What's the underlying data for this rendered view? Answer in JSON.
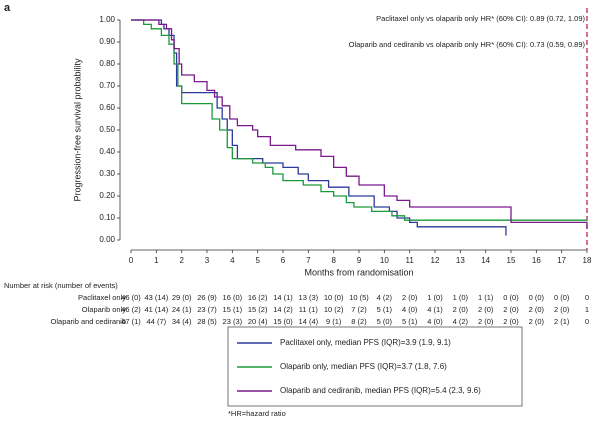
{
  "panel_label": "a",
  "chart_data": {
    "type": "line",
    "step": true,
    "y_label": "Progression-free survival probability",
    "x_label": "Months from randomisation",
    "annotations": [
      "Paclitaxel only vs olaparib only HR* (60% CI): 0.89 (0.72, 1.09)",
      "Olaparib and cediranib vs olaparib only HR* (60% CI): 0.73 (0.59, 0.89)"
    ],
    "xlim": [
      0,
      18
    ],
    "xticks": [
      0,
      1,
      2,
      3,
      4,
      5,
      6,
      7,
      8,
      9,
      10,
      11,
      12,
      13,
      14,
      15,
      16,
      17,
      18
    ],
    "ylim": [
      0,
      1
    ],
    "yticks": [
      {
        "value": 0,
        "label": "0.00"
      },
      {
        "value": 0.1,
        "label": "0.10"
      },
      {
        "value": 0.2,
        "label": "0.20"
      },
      {
        "value": 0.3,
        "label": "0.30"
      },
      {
        "value": 0.4,
        "label": "0.40"
      },
      {
        "value": 0.5,
        "label": "0.50"
      },
      {
        "value": 0.6,
        "label": "0.60"
      },
      {
        "value": 0.7,
        "label": "0.70"
      },
      {
        "value": 0.8,
        "label": "0.80"
      },
      {
        "value": 0.9,
        "label": "0.90"
      },
      {
        "value": 1,
        "label": "1.00"
      }
    ],
    "cutoff_color": "#c0283c",
    "series": [
      {
        "name": "Paclitaxel only, median PFS (IQR)=3.9 (1.9, 9.1)",
        "color": "#2b3a9a",
        "x": [
          0,
          1.2,
          1.3,
          1.5,
          1.7,
          1.8,
          2.0,
          3.4,
          3.6,
          3.8,
          4.0,
          4.2,
          5.2,
          6.0,
          6.6,
          7.0,
          7.8,
          8.6,
          9.6,
          10.2,
          10.5,
          11.0,
          11.3,
          14.8
        ],
        "values": [
          1.0,
          0.98,
          0.96,
          0.93,
          0.85,
          0.7,
          0.67,
          0.6,
          0.55,
          0.5,
          0.43,
          0.37,
          0.35,
          0.33,
          0.3,
          0.27,
          0.24,
          0.2,
          0.15,
          0.13,
          0.1,
          0.08,
          0.06,
          0.02
        ]
      },
      {
        "name": "Olaparib only, median PFS (IQR)=3.7 (1.8, 7.6)",
        "color": "#1a9a3a",
        "x": [
          0,
          0.5,
          0.8,
          1.2,
          1.5,
          1.7,
          1.85,
          2.0,
          3.2,
          3.5,
          3.8,
          4.0,
          4.8,
          5.3,
          5.6,
          6.0,
          6.8,
          7.5,
          8.0,
          8.5,
          8.8,
          9.5,
          10.3,
          10.8,
          18
        ],
        "values": [
          1.0,
          0.98,
          0.96,
          0.93,
          0.89,
          0.8,
          0.7,
          0.62,
          0.55,
          0.5,
          0.42,
          0.37,
          0.35,
          0.33,
          0.3,
          0.27,
          0.25,
          0.22,
          0.2,
          0.17,
          0.15,
          0.13,
          0.11,
          0.09,
          0.09
        ]
      },
      {
        "name": "Olaparib and cediranib, median PFS (IQR)=5.4 (2.3, 9.6)",
        "color": "#7a1a8a",
        "x": [
          0,
          1.1,
          1.4,
          1.6,
          1.7,
          1.9,
          2.0,
          2.5,
          3.0,
          3.3,
          3.6,
          3.9,
          4.2,
          4.8,
          5.0,
          5.5,
          6.5,
          7.5,
          8.0,
          8.5,
          9.0,
          10.0,
          10.5,
          11.0,
          15.0,
          18
        ],
        "values": [
          1.0,
          0.98,
          0.96,
          0.91,
          0.87,
          0.8,
          0.75,
          0.72,
          0.68,
          0.65,
          0.61,
          0.55,
          0.52,
          0.5,
          0.47,
          0.43,
          0.41,
          0.38,
          0.33,
          0.29,
          0.25,
          0.2,
          0.18,
          0.15,
          0.08,
          0.05
        ]
      }
    ],
    "risk_table": {
      "title": "Number at risk (number of events)",
      "rows": [
        {
          "label": "Paclitaxel only",
          "values": [
            "46 (0)",
            "43 (14)",
            "29 (0)",
            "26 (9)",
            "16 (0)",
            "16 (2)",
            "14 (1)",
            "13 (3)",
            "10 (0)",
            "10 (5)",
            "4 (2)",
            "2 (0)",
            "1 (0)",
            "1 (0)",
            "1 (1)",
            "0 (0)",
            "0 (0)",
            "0 (0)",
            "0"
          ]
        },
        {
          "label": "Olaparib only",
          "values": [
            "46 (2)",
            "41 (14)",
            "24 (1)",
            "23 (7)",
            "15 (1)",
            "15 (2)",
            "14 (2)",
            "11 (1)",
            "10 (2)",
            "7 (2)",
            "5 (1)",
            "4 (0)",
            "4 (1)",
            "2 (0)",
            "2 (0)",
            "2 (0)",
            "2 (0)",
            "2 (0)",
            "1"
          ]
        },
        {
          "label": "Olaparib and cediranib",
          "values": [
            "47 (1)",
            "44 (7)",
            "34 (4)",
            "28 (5)",
            "23 (3)",
            "20 (4)",
            "15 (0)",
            "14 (4)",
            "9 (1)",
            "8 (2)",
            "5 (0)",
            "5 (1)",
            "4 (0)",
            "4 (2)",
            "2 (0)",
            "2 (0)",
            "2 (0)",
            "2 (1)",
            "0"
          ]
        }
      ]
    },
    "footnote": "*HR=hazard ratio"
  }
}
